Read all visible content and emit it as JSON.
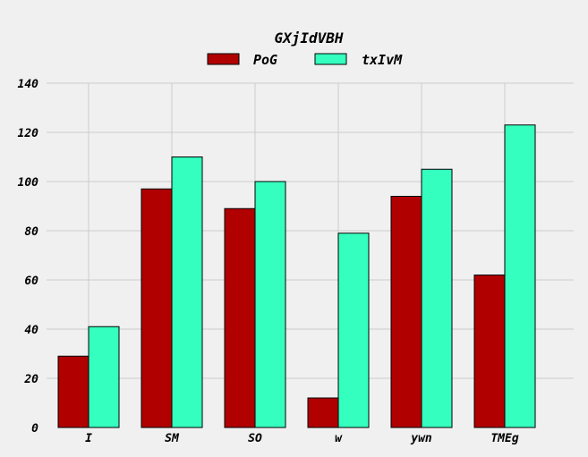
{
  "chart_data": {
    "type": "bar",
    "title": "GXjIdVBH",
    "categories": [
      "I",
      "SM",
      "SO",
      "w",
      "ywn",
      "TMEg"
    ],
    "series": [
      {
        "name": "PoG",
        "color": "#b00000",
        "values": [
          29,
          97,
          89,
          12,
          94,
          62
        ]
      },
      {
        "name": "txIvM",
        "color": "#35ffbe",
        "values": [
          41,
          110,
          100,
          79,
          105,
          123
        ]
      }
    ],
    "ylim": [
      0,
      140
    ],
    "yticks": [
      0,
      20,
      40,
      60,
      80,
      100,
      120,
      140
    ],
    "grid": true,
    "legend_position": "top-center",
    "xlabel": "",
    "ylabel": ""
  }
}
